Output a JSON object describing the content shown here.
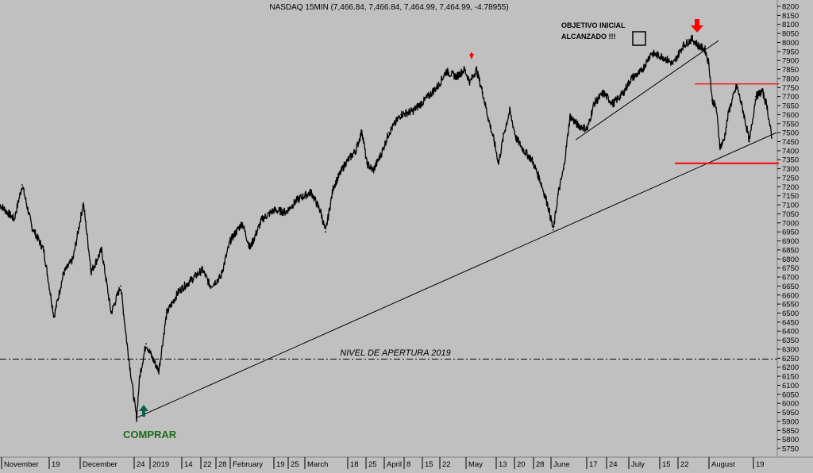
{
  "chart_data": {
    "type": "line",
    "title": "NASDAQ 15MIN (7,466.84, 7,466.84, 7,464.99, 7,464.99, -4.78955)",
    "y_ticks": [
      5750,
      5800,
      5850,
      5900,
      5950,
      6000,
      6050,
      6100,
      6150,
      6200,
      6250,
      6300,
      6350,
      6400,
      6450,
      6500,
      6550,
      6600,
      6650,
      6700,
      6750,
      6800,
      6850,
      6900,
      6950,
      7000,
      7050,
      7100,
      7150,
      7200,
      7250,
      7300,
      7350,
      7400,
      7450,
      7500,
      7550,
      7600,
      7650,
      7700,
      7750,
      7800,
      7850,
      7900,
      7950,
      8000,
      8050,
      8100,
      8150,
      8200
    ],
    "ylim": [
      5720,
      8220
    ],
    "x_labels": [
      "November",
      "19",
      "December",
      "24",
      "2019",
      "14",
      "22",
      "28",
      "February",
      "19",
      "25",
      "March",
      "18",
      "25",
      "April",
      "8",
      "15",
      "22",
      "May",
      "13",
      "20",
      "28",
      "June",
      "17",
      "24",
      "July",
      "15",
      "22",
      "August",
      "19"
    ],
    "series": [
      {
        "values": [
          {
            "x": 0,
            "y": 7100
          },
          {
            "x": 18,
            "y": 7020
          },
          {
            "x": 28,
            "y": 7210
          },
          {
            "x": 40,
            "y": 6980
          },
          {
            "x": 55,
            "y": 6850
          },
          {
            "x": 68,
            "y": 6480
          },
          {
            "x": 80,
            "y": 6720
          },
          {
            "x": 92,
            "y": 6800
          },
          {
            "x": 105,
            "y": 7110
          },
          {
            "x": 115,
            "y": 6730
          },
          {
            "x": 128,
            "y": 6850
          },
          {
            "x": 140,
            "y": 6500
          },
          {
            "x": 152,
            "y": 6650
          },
          {
            "x": 160,
            "y": 6330
          },
          {
            "x": 168,
            "y": 6050
          },
          {
            "x": 172,
            "y": 5920
          },
          {
            "x": 176,
            "y": 6150
          },
          {
            "x": 184,
            "y": 6330
          },
          {
            "x": 192,
            "y": 6250
          },
          {
            "x": 200,
            "y": 6180
          },
          {
            "x": 210,
            "y": 6500
          },
          {
            "x": 225,
            "y": 6620
          },
          {
            "x": 240,
            "y": 6680
          },
          {
            "x": 255,
            "y": 6740
          },
          {
            "x": 265,
            "y": 6650
          },
          {
            "x": 278,
            "y": 6700
          },
          {
            "x": 290,
            "y": 6900
          },
          {
            "x": 305,
            "y": 7000
          },
          {
            "x": 315,
            "y": 6860
          },
          {
            "x": 330,
            "y": 7020
          },
          {
            "x": 345,
            "y": 7070
          },
          {
            "x": 360,
            "y": 7060
          },
          {
            "x": 375,
            "y": 7130
          },
          {
            "x": 392,
            "y": 7170
          },
          {
            "x": 404,
            "y": 7060
          },
          {
            "x": 410,
            "y": 6950
          },
          {
            "x": 420,
            "y": 7200
          },
          {
            "x": 435,
            "y": 7330
          },
          {
            "x": 448,
            "y": 7400
          },
          {
            "x": 456,
            "y": 7510
          },
          {
            "x": 462,
            "y": 7330
          },
          {
            "x": 470,
            "y": 7290
          },
          {
            "x": 480,
            "y": 7380
          },
          {
            "x": 490,
            "y": 7500
          },
          {
            "x": 505,
            "y": 7600
          },
          {
            "x": 520,
            "y": 7620
          },
          {
            "x": 535,
            "y": 7680
          },
          {
            "x": 552,
            "y": 7760
          },
          {
            "x": 562,
            "y": 7840
          },
          {
            "x": 575,
            "y": 7810
          },
          {
            "x": 585,
            "y": 7850
          },
          {
            "x": 592,
            "y": 7780
          },
          {
            "x": 600,
            "y": 7850
          },
          {
            "x": 608,
            "y": 7720
          },
          {
            "x": 615,
            "y": 7580
          },
          {
            "x": 622,
            "y": 7460
          },
          {
            "x": 628,
            "y": 7330
          },
          {
            "x": 635,
            "y": 7500
          },
          {
            "x": 642,
            "y": 7620
          },
          {
            "x": 650,
            "y": 7470
          },
          {
            "x": 660,
            "y": 7400
          },
          {
            "x": 670,
            "y": 7350
          },
          {
            "x": 680,
            "y": 7240
          },
          {
            "x": 690,
            "y": 7100
          },
          {
            "x": 697,
            "y": 6960
          },
          {
            "x": 703,
            "y": 7160
          },
          {
            "x": 710,
            "y": 7300
          },
          {
            "x": 718,
            "y": 7590
          },
          {
            "x": 728,
            "y": 7540
          },
          {
            "x": 740,
            "y": 7520
          },
          {
            "x": 748,
            "y": 7660
          },
          {
            "x": 760,
            "y": 7720
          },
          {
            "x": 772,
            "y": 7660
          },
          {
            "x": 785,
            "y": 7720
          },
          {
            "x": 795,
            "y": 7800
          },
          {
            "x": 808,
            "y": 7840
          },
          {
            "x": 820,
            "y": 7940
          },
          {
            "x": 835,
            "y": 7920
          },
          {
            "x": 848,
            "y": 7880
          },
          {
            "x": 860,
            "y": 7980
          },
          {
            "x": 872,
            "y": 8020
          },
          {
            "x": 880,
            "y": 7980
          },
          {
            "x": 888,
            "y": 7960
          },
          {
            "x": 893,
            "y": 7880
          },
          {
            "x": 897,
            "y": 7680
          },
          {
            "x": 902,
            "y": 7640
          },
          {
            "x": 907,
            "y": 7420
          },
          {
            "x": 912,
            "y": 7460
          },
          {
            "x": 918,
            "y": 7620
          },
          {
            "x": 928,
            "y": 7760
          },
          {
            "x": 936,
            "y": 7620
          },
          {
            "x": 944,
            "y": 7450
          },
          {
            "x": 952,
            "y": 7700
          },
          {
            "x": 960,
            "y": 7730
          },
          {
            "x": 966,
            "y": 7650
          },
          {
            "x": 972,
            "y": 7470
          }
        ]
      }
    ],
    "annotations": {
      "open_level_label": "NIVEL DE APERTURA 2019",
      "open_level_value": 6245,
      "buy_label": "COMPRAR",
      "target_label_line1": "OBJETIVO INICIAL",
      "target_label_line2": "ALCANZADO !!!",
      "trendline_main": [
        {
          "x": 172,
          "y": 5920
        },
        {
          "x": 978,
          "y": 7500
        }
      ],
      "trendline_upper": [
        {
          "x": 725,
          "y": 7460
        },
        {
          "x": 905,
          "y": 8010
        }
      ],
      "resistance_value": 7770,
      "support_value": 7330
    },
    "colors": {
      "background": "#c0c0c0",
      "price": "#000000",
      "level_line": "#ff0000",
      "arrow_down": "#ff0000",
      "buy_text": "#1a6b1a",
      "buy_arrow": "#0f5d4d"
    }
  }
}
